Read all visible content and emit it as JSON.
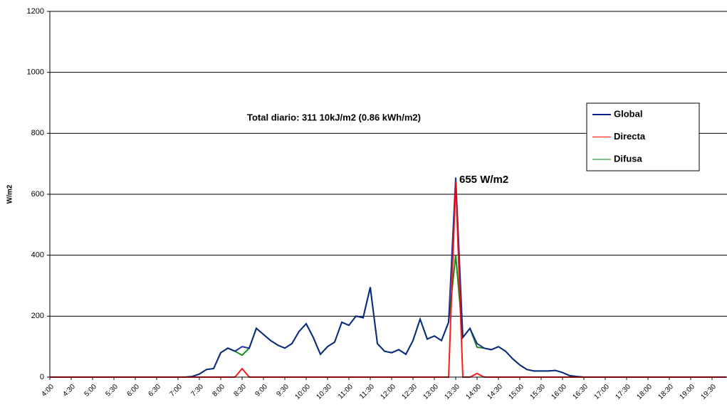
{
  "chart_data": {
    "type": "line",
    "y_label": "W/m2",
    "annotations": [
      {
        "text": "Total diario:  311  10kJ/m2  (0.86 kWh/m2)",
        "color": "#ff6600"
      },
      {
        "text": "655  W/m2",
        "color": "#0000cc"
      }
    ],
    "categories": [
      "4:00",
      null,
      null,
      "4:30",
      null,
      null,
      "5:00",
      null,
      null,
      "5:30",
      null,
      null,
      "6:00",
      null,
      null,
      "6:30",
      null,
      null,
      "7:00",
      null,
      null,
      "7:30",
      null,
      null,
      "8:00",
      null,
      null,
      "8:30",
      null,
      null,
      "9:00",
      null,
      null,
      "9:30",
      null,
      null,
      "10:00",
      null,
      null,
      "10:30",
      null,
      null,
      "11:00",
      null,
      null,
      "11:30",
      null,
      null,
      "12:00",
      null,
      null,
      "12:30",
      null,
      null,
      "13:00",
      null,
      null,
      "13:30",
      null,
      null,
      "14:00",
      null,
      null,
      "14:30",
      null,
      null,
      "15:00",
      null,
      null,
      "15:30",
      null,
      null,
      "16:00",
      null,
      null,
      "16:30",
      null,
      null,
      "17:00",
      null,
      null,
      "17:30",
      null,
      null,
      "18:00",
      null,
      null,
      "18:30",
      null,
      null,
      "19:00",
      null,
      null,
      "19:30",
      null,
      null
    ],
    "series": [
      {
        "name": "Difusa",
        "color": "#008000",
        "values": [
          0,
          0,
          0,
          0,
          0,
          0,
          0,
          0,
          0,
          0,
          0,
          0,
          0,
          0,
          0,
          0,
          0,
          0,
          0,
          0,
          2,
          10,
          25,
          28,
          80,
          95,
          85,
          72,
          95,
          160,
          140,
          120,
          105,
          95,
          110,
          150,
          175,
          130,
          75,
          100,
          115,
          180,
          170,
          200,
          195,
          295,
          110,
          85,
          80,
          90,
          75,
          120,
          190,
          125,
          135,
          120,
          180,
          400,
          130,
          160,
          98,
          95,
          90,
          100,
          85,
          60,
          40,
          25,
          20,
          20,
          20,
          22,
          15,
          5,
          2,
          0,
          0,
          0,
          0,
          0,
          0,
          0,
          0,
          0,
          0,
          0,
          0,
          0,
          0,
          0,
          0,
          0,
          0,
          0,
          0,
          0
        ]
      },
      {
        "name": "Global",
        "color": "#0a1f8f",
        "values": [
          0,
          0,
          0,
          0,
          0,
          0,
          0,
          0,
          0,
          0,
          0,
          0,
          0,
          0,
          0,
          0,
          0,
          0,
          0,
          0,
          2,
          10,
          25,
          28,
          80,
          95,
          85,
          100,
          95,
          160,
          140,
          120,
          105,
          95,
          110,
          150,
          175,
          130,
          75,
          100,
          115,
          180,
          170,
          200,
          195,
          295,
          110,
          85,
          80,
          90,
          75,
          120,
          190,
          125,
          135,
          120,
          180,
          655,
          130,
          160,
          110,
          95,
          90,
          100,
          85,
          60,
          40,
          25,
          20,
          20,
          20,
          22,
          15,
          5,
          2,
          0,
          0,
          0,
          0,
          0,
          0,
          0,
          0,
          0,
          0,
          0,
          0,
          0,
          0,
          0,
          0,
          0,
          0,
          0,
          0,
          0
        ]
      },
      {
        "name": "Directa",
        "color": "#ff0000",
        "values": [
          0,
          0,
          0,
          0,
          0,
          0,
          0,
          0,
          0,
          0,
          0,
          0,
          0,
          0,
          0,
          0,
          0,
          0,
          0,
          0,
          0,
          0,
          0,
          0,
          0,
          0,
          0,
          28,
          0,
          0,
          0,
          0,
          0,
          0,
          0,
          0,
          0,
          0,
          0,
          0,
          0,
          0,
          0,
          0,
          0,
          0,
          0,
          0,
          0,
          0,
          0,
          0,
          0,
          0,
          0,
          0,
          0,
          640,
          0,
          0,
          12,
          0,
          0,
          0,
          0,
          0,
          0,
          0,
          0,
          0,
          0,
          0,
          0,
          0,
          0,
          0,
          0,
          0,
          0,
          0,
          0,
          0,
          0,
          0,
          0,
          0,
          0,
          0,
          0,
          0,
          0,
          0,
          0,
          0,
          0,
          0
        ]
      }
    ],
    "legend_order": [
      1,
      2,
      0
    ],
    "ylim": [
      0,
      1200
    ],
    "yticks": [
      0,
      200,
      400,
      600,
      800,
      1000,
      1200
    ],
    "grid": true
  }
}
